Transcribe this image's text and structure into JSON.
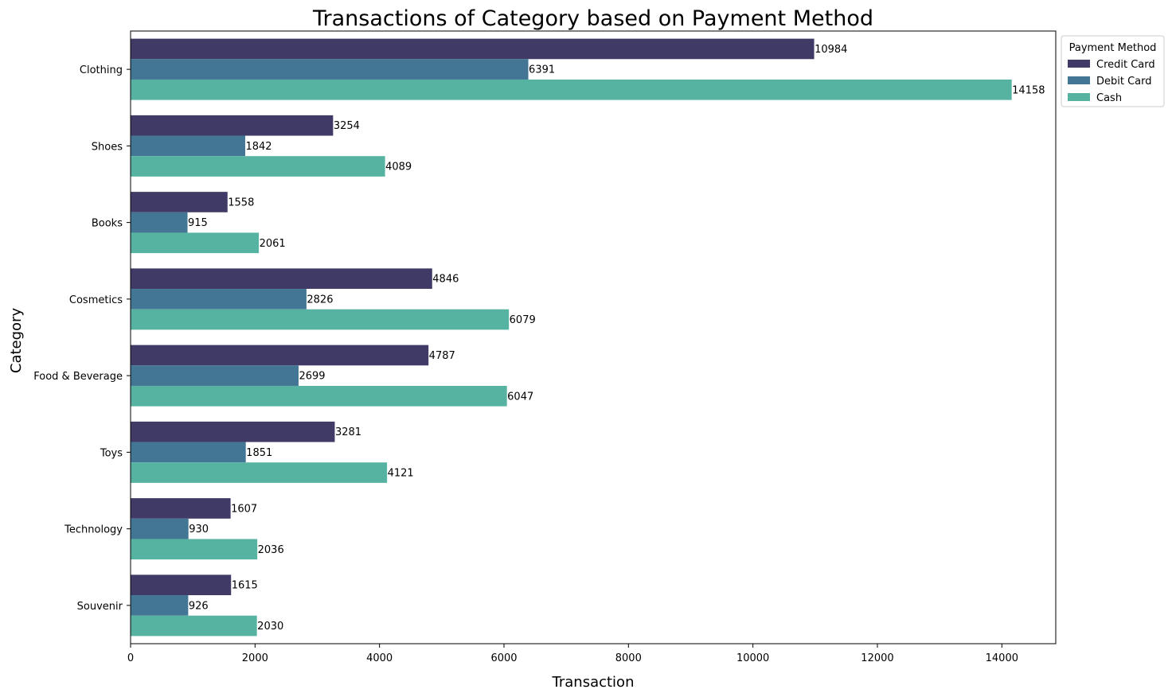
{
  "chart_data": {
    "type": "bar",
    "orientation": "horizontal",
    "title": "Transactions of Category based on Payment Method",
    "xlabel": "Transaction",
    "ylabel": "Category",
    "categories": [
      "Clothing",
      "Shoes",
      "Books",
      "Cosmetics",
      "Food & Beverage",
      "Toys",
      "Technology",
      "Souvenir"
    ],
    "series": [
      {
        "name": "Credit Card",
        "color": "#403b66",
        "values": [
          10984,
          3254,
          1558,
          4846,
          4787,
          3281,
          1607,
          1615
        ]
      },
      {
        "name": "Debit Card",
        "color": "#437594",
        "values": [
          6391,
          1842,
          915,
          2826,
          2699,
          1851,
          930,
          926
        ]
      },
      {
        "name": "Cash",
        "color": "#57b3a1",
        "values": [
          14158,
          4089,
          2061,
          6079,
          6047,
          4121,
          2036,
          2030
        ]
      }
    ],
    "xlim": [
      0,
      14866
    ],
    "xticks": [
      0,
      2000,
      4000,
      6000,
      8000,
      10000,
      12000,
      14000
    ],
    "grid": false,
    "legend": {
      "title": "Payment Method",
      "placement": "upper-right-outside"
    }
  }
}
